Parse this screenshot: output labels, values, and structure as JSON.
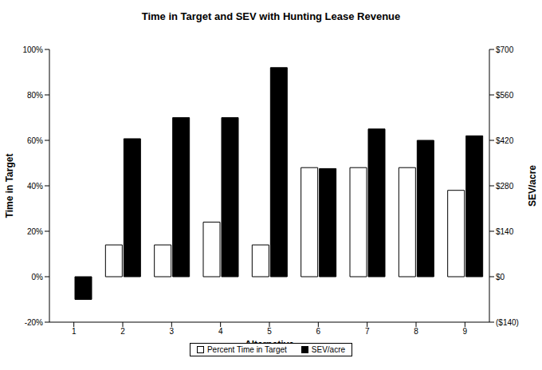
{
  "chart_data": {
    "type": "bar",
    "title": "Time in Target and SEV with Hunting Lease Revenue",
    "x_label": "Alternative",
    "y_label": "Time in Target",
    "y2_label": "SEV/acre",
    "categories": [
      "1",
      "2",
      "3",
      "4",
      "5",
      "6",
      "7",
      "8",
      "9"
    ],
    "series": [
      {
        "name": "Percent Time in Target",
        "color": "#ffffff",
        "values": [
          0,
          14,
          14,
          24,
          14,
          48,
          48,
          48,
          38
        ]
      },
      {
        "name": "SEV/acre",
        "color": "#000000",
        "axis": "y2",
        "values": [
          -70,
          425,
          490,
          490,
          644,
          333,
          455,
          420,
          434
        ]
      }
    ],
    "ylim": [
      -20,
      100
    ],
    "yticks": [
      {
        "value": -20,
        "label": "-20%"
      },
      {
        "value": 0,
        "label": "0%"
      },
      {
        "value": 20,
        "label": "20%"
      },
      {
        "value": 40,
        "label": "40%"
      },
      {
        "value": 60,
        "label": "60%"
      },
      {
        "value": 80,
        "label": "80%"
      },
      {
        "value": 100,
        "label": "100%"
      }
    ],
    "y2lim": [
      -140,
      700
    ],
    "y2ticks": [
      {
        "value": -140,
        "label": "($140)"
      },
      {
        "value": 0,
        "label": "$0"
      },
      {
        "value": 140,
        "label": "$140"
      },
      {
        "value": 280,
        "label": "$280"
      },
      {
        "value": 420,
        "label": "$420"
      },
      {
        "value": 560,
        "label": "$560"
      },
      {
        "value": 700,
        "label": "$700"
      }
    ],
    "legend": "bottom",
    "grid": false
  }
}
